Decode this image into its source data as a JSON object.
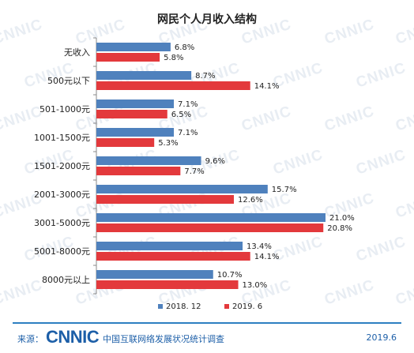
{
  "chart_data": {
    "type": "bar",
    "orientation": "horizontal",
    "title": "网民个人月收入结构",
    "categories": [
      "无收入",
      "500元以下",
      "501-1000元",
      "1001-1500元",
      "1501-2000元",
      "2001-3000元",
      "3001-5000元",
      "5001-8000元",
      "8000元以上"
    ],
    "series": [
      {
        "name": "2018. 12",
        "color": "#4f81bd",
        "values": [
          6.8,
          8.7,
          7.1,
          7.1,
          9.6,
          15.7,
          21.0,
          13.4,
          10.7
        ],
        "labels": [
          "6.8%",
          "8.7%",
          "7.1%",
          "7.1%",
          "9.6%",
          "15.7%",
          "21.0%",
          "13.4%",
          "10.7%"
        ]
      },
      {
        "name": "2019. 6",
        "color": "#e3393c",
        "values": [
          5.8,
          14.1,
          6.5,
          5.3,
          7.7,
          12.6,
          20.8,
          14.1,
          13.0
        ],
        "labels": [
          "5.8%",
          "14.1%",
          "6.5%",
          "5.3%",
          "7.7%",
          "12.6%",
          "20.8%",
          "14.1%",
          "13.0%"
        ]
      }
    ],
    "xlim": [
      0,
      25
    ],
    "grid": false,
    "legend": "bottom-center"
  },
  "watermark": "CNNIC",
  "footer": {
    "source_label": "来源：",
    "logo_text": "CNNIC",
    "report_name": "中国互联网络发展状况统计调查",
    "date": "2019.6"
  }
}
